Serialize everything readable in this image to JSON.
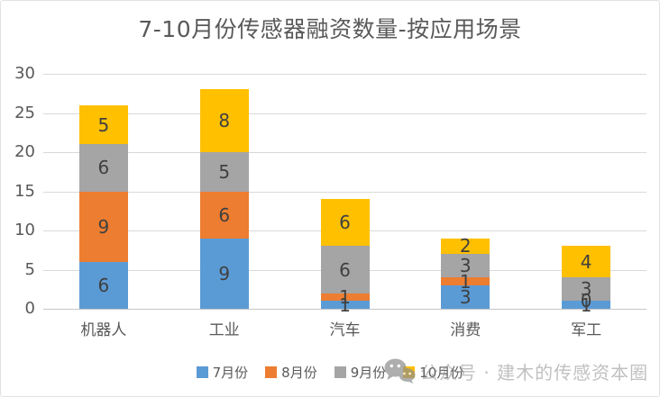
{
  "title": "7-10月份传感器融资数量-按应用场景",
  "watermark": {
    "icon": "wechat-icon",
    "text": "公众号 · 建木的传感资本圈"
  },
  "colors": {
    "series_july": "#5B9BD5",
    "series_august": "#ED7D31",
    "series_september": "#A5A5A5",
    "series_october": "#FFC000",
    "gridline": "#D9D9D9",
    "axis_line": "#C6C6C6",
    "axis_text": "#595959",
    "data_label_text": "#404040",
    "watermark_text": "#C3C3C3"
  },
  "chart_data": {
    "type": "bar",
    "stacked": true,
    "title": "7-10月份传感器融资数量-按应用场景",
    "categories": [
      "机器人",
      "工业",
      "汽车",
      "消费",
      "军工"
    ],
    "series": [
      {
        "name": "7月份",
        "color": "#5B9BD5",
        "values": [
          6,
          9,
          1,
          3,
          1
        ]
      },
      {
        "name": "8月份",
        "color": "#ED7D31",
        "values": [
          9,
          6,
          1,
          1,
          0
        ]
      },
      {
        "name": "9月份",
        "color": "#A5A5A5",
        "values": [
          6,
          5,
          6,
          3,
          3
        ]
      },
      {
        "name": "10月份",
        "color": "#FFC000",
        "values": [
          5,
          8,
          6,
          2,
          4
        ]
      }
    ],
    "totals": [
      26,
      28,
      14,
      9,
      8
    ],
    "xlabel": "",
    "ylabel": "",
    "ylim": [
      0,
      30
    ],
    "yticks": [
      0,
      5,
      10,
      15,
      20,
      25,
      30
    ],
    "grid": true,
    "data_labels": true,
    "legend_position": "bottom"
  }
}
